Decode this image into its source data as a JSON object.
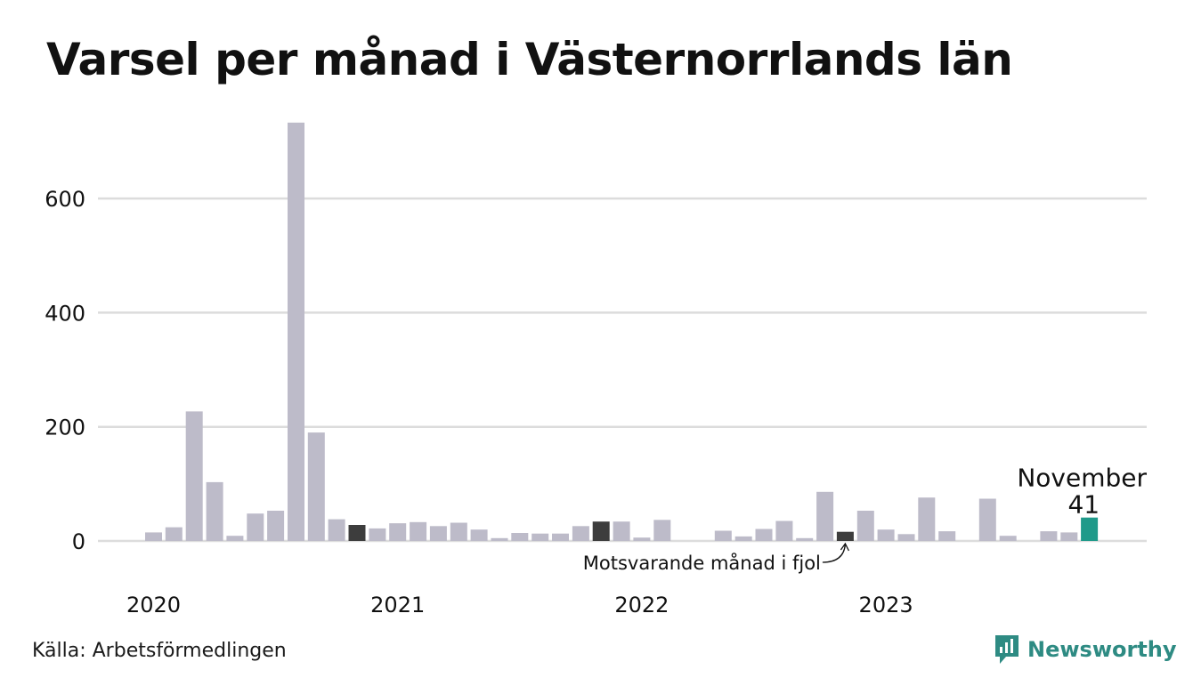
{
  "title": "Varsel per månad i Västernorrlands län",
  "source": "Källa: Arbetsförmedlingen",
  "brand": {
    "name": "Newsworthy",
    "icon": "newsworthy-logo-icon"
  },
  "colors": {
    "bar": "#bdbbc9",
    "highlight_previous": "#3d3d3d",
    "current": "#1f9a8a",
    "grid": "#dcdcdc",
    "brand": "#2e8b83"
  },
  "chart_data": {
    "type": "bar",
    "title": "Varsel per månad i Västernorrlands län",
    "xlabel": "",
    "ylabel": "",
    "ylim": [
      0,
      735
    ],
    "yticks": [
      0,
      200,
      400,
      600
    ],
    "x_tick_labels": [
      "2020",
      "2021",
      "2022",
      "2023"
    ],
    "grid": true,
    "series": [
      {
        "values": [
          15,
          24,
          227,
          103,
          9,
          48,
          53,
          733,
          190,
          38,
          28,
          22,
          31,
          33,
          26,
          32,
          20,
          5,
          14,
          13,
          13,
          26,
          34,
          34,
          6,
          37,
          0,
          0,
          18,
          8,
          21,
          35,
          5,
          86,
          16,
          53,
          20,
          12,
          76,
          17,
          0,
          74,
          9,
          0,
          17,
          15,
          41
        ]
      }
    ],
    "highlights": [
      {
        "index": 10,
        "role": "previous"
      },
      {
        "index": 22,
        "role": "previous"
      },
      {
        "index": 34,
        "role": "previous"
      },
      {
        "index": 46,
        "role": "current"
      }
    ],
    "annotations": [
      {
        "index": 34,
        "text": "Motsvarande månad i fjol"
      },
      {
        "index": 46,
        "text": "November",
        "value_label": "41"
      }
    ]
  }
}
